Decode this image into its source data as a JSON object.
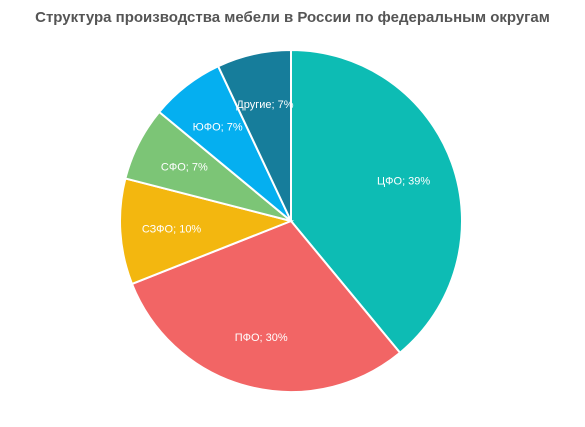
{
  "chart_data": {
    "type": "pie",
    "title": "Структура производства мебели в России по федеральным округам",
    "unit": "%",
    "slices": [
      {
        "label": "ЦФО",
        "value": 39,
        "color": "#0dbcb4",
        "text": "ЦФО; 39%"
      },
      {
        "label": "ПФО",
        "value": 30,
        "color": "#f26565",
        "text": "ПФО; 30%"
      },
      {
        "label": "СЗФО",
        "value": 10,
        "color": "#f3b70f",
        "text": "СЗФО; 10%"
      },
      {
        "label": "СФО",
        "value": 7,
        "color": "#7cc576",
        "text": "СФО; 7%"
      },
      {
        "label": "ЮФО",
        "value": 7,
        "color": "#05aff0",
        "text": "ЮФО; 7%"
      },
      {
        "label": "Другие",
        "value": 7,
        "color": "#167d9b",
        "text": "Другие; 7%"
      }
    ]
  }
}
